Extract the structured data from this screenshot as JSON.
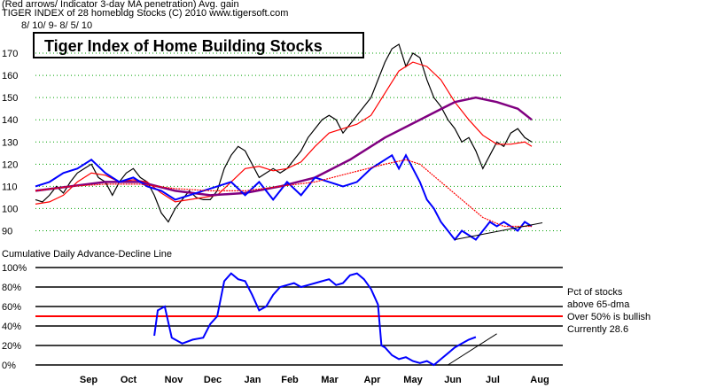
{
  "header": {
    "line0": "(Red arrows/ Indicator 3-day MA penetration) Avg. gain",
    "line1": "TIGER INDEX of  28 homebldg Stocks  (C) 2010  www.tigersoft.com",
    "line2": "8/ 10/ 9-  8/ 5/ 10"
  },
  "chart_data": [
    {
      "type": "line",
      "title": "Tiger Index of Home Building Stocks",
      "x_labels": [
        "Sep",
        "Oct",
        "Nov",
        "Dec",
        "Jan",
        "Feb",
        "Mar",
        "Apr",
        "May",
        "Jun",
        "Jul",
        "Aug"
      ],
      "y_ticks": [
        90,
        100,
        110,
        120,
        130,
        140,
        150,
        160,
        170
      ],
      "ylim": [
        87,
        178
      ],
      "series": [
        {
          "key": "price",
          "color": "#000000",
          "values": [
            [
              0,
              104
            ],
            [
              2,
              103
            ],
            [
              4,
              106
            ],
            [
              6,
              110
            ],
            [
              8,
              107
            ],
            [
              10,
              112
            ],
            [
              12,
              116
            ],
            [
              14,
              118
            ],
            [
              16,
              120
            ],
            [
              18,
              114
            ],
            [
              20,
              112
            ],
            [
              22,
              106
            ],
            [
              24,
              112
            ],
            [
              26,
              116
            ],
            [
              28,
              118
            ],
            [
              30,
              114
            ],
            [
              32,
              112
            ],
            [
              34,
              106
            ],
            [
              36,
              98
            ],
            [
              38,
              94
            ],
            [
              40,
              100
            ],
            [
              42,
              104
            ],
            [
              44,
              108
            ],
            [
              46,
              105
            ],
            [
              48,
              104
            ],
            [
              50,
              104
            ],
            [
              52,
              108
            ],
            [
              54,
              118
            ],
            [
              56,
              124
            ],
            [
              58,
              128
            ],
            [
              60,
              126
            ],
            [
              62,
              120
            ],
            [
              64,
              114
            ],
            [
              66,
              116
            ],
            [
              68,
              118
            ],
            [
              70,
              116
            ],
            [
              72,
              118
            ],
            [
              74,
              122
            ],
            [
              76,
              126
            ],
            [
              78,
              132
            ],
            [
              80,
              136
            ],
            [
              82,
              140
            ],
            [
              84,
              142
            ],
            [
              86,
              140
            ],
            [
              88,
              134
            ],
            [
              90,
              138
            ],
            [
              92,
              142
            ],
            [
              94,
              146
            ],
            [
              96,
              150
            ],
            [
              98,
              158
            ],
            [
              100,
              166
            ],
            [
              102,
              172
            ],
            [
              104,
              174
            ],
            [
              106,
              164
            ],
            [
              108,
              170
            ],
            [
              110,
              168
            ],
            [
              112,
              158
            ],
            [
              114,
              150
            ],
            [
              116,
              146
            ],
            [
              118,
              140
            ],
            [
              120,
              136
            ],
            [
              122,
              130
            ],
            [
              124,
              132
            ],
            [
              126,
              126
            ],
            [
              128,
              118
            ],
            [
              130,
              124
            ],
            [
              132,
              130
            ],
            [
              134,
              128
            ],
            [
              136,
              134
            ],
            [
              138,
              136
            ],
            [
              140,
              132
            ],
            [
              142,
              130
            ]
          ]
        },
        {
          "key": "ma_short",
          "color": "#ff0000",
          "values": [
            [
              0,
              102
            ],
            [
              4,
              103
            ],
            [
              8,
              106
            ],
            [
              12,
              112
            ],
            [
              16,
              116
            ],
            [
              20,
              115
            ],
            [
              24,
              112
            ],
            [
              28,
              113
            ],
            [
              32,
              112
            ],
            [
              36,
              107
            ],
            [
              40,
              103
            ],
            [
              44,
              104
            ],
            [
              48,
              105
            ],
            [
              52,
              106
            ],
            [
              56,
              112
            ],
            [
              60,
              118
            ],
            [
              64,
              119
            ],
            [
              68,
              117
            ],
            [
              72,
              118
            ],
            [
              76,
              121
            ],
            [
              80,
              128
            ],
            [
              84,
              134
            ],
            [
              88,
              136
            ],
            [
              92,
              138
            ],
            [
              96,
              142
            ],
            [
              100,
              152
            ],
            [
              104,
              162
            ],
            [
              108,
              166
            ],
            [
              112,
              164
            ],
            [
              116,
              158
            ],
            [
              120,
              148
            ],
            [
              124,
              140
            ],
            [
              128,
              133
            ],
            [
              132,
              129
            ],
            [
              136,
              129
            ],
            [
              140,
              130
            ],
            [
              142,
              128
            ]
          ]
        },
        {
          "key": "ma_long",
          "color": "#800080",
          "values": [
            [
              0,
              108
            ],
            [
              10,
              110
            ],
            [
              20,
              112
            ],
            [
              30,
              112
            ],
            [
              40,
              108
            ],
            [
              50,
              106
            ],
            [
              60,
              107
            ],
            [
              70,
              110
            ],
            [
              80,
              114
            ],
            [
              90,
              122
            ],
            [
              100,
              132
            ],
            [
              110,
              140
            ],
            [
              120,
              148
            ],
            [
              126,
              150
            ],
            [
              132,
              148
            ],
            [
              138,
              145
            ],
            [
              142,
              140
            ]
          ]
        },
        {
          "key": "rs_blue",
          "color": "#0000ff",
          "values": [
            [
              0,
              110
            ],
            [
              4,
              112
            ],
            [
              8,
              116
            ],
            [
              12,
              118
            ],
            [
              16,
              122
            ],
            [
              20,
              116
            ],
            [
              24,
              112
            ],
            [
              28,
              114
            ],
            [
              32,
              110
            ],
            [
              36,
              108
            ],
            [
              40,
              104
            ],
            [
              44,
              106
            ],
            [
              48,
              108
            ],
            [
              52,
              110
            ],
            [
              56,
              112
            ],
            [
              60,
              106
            ],
            [
              64,
              112
            ],
            [
              66,
              108
            ],
            [
              68,
              104
            ],
            [
              70,
              108
            ],
            [
              72,
              112
            ],
            [
              76,
              106
            ],
            [
              80,
              114
            ],
            [
              84,
              112
            ],
            [
              88,
              110
            ],
            [
              92,
              112
            ],
            [
              96,
              118
            ],
            [
              100,
              122
            ],
            [
              102,
              124
            ],
            [
              104,
              118
            ],
            [
              106,
              124
            ],
            [
              108,
              118
            ],
            [
              110,
              112
            ],
            [
              112,
              104
            ],
            [
              114,
              100
            ],
            [
              116,
              94
            ],
            [
              118,
              90
            ],
            [
              120,
              86
            ],
            [
              122,
              90
            ],
            [
              124,
              88
            ],
            [
              126,
              86
            ],
            [
              128,
              90
            ],
            [
              130,
              94
            ],
            [
              132,
              92
            ],
            [
              134,
              94
            ],
            [
              136,
              92
            ],
            [
              138,
              90
            ],
            [
              140,
              94
            ],
            [
              142,
              92
            ]
          ]
        },
        {
          "key": "rs_ma",
          "color": "#ff0000",
          "style": "dotted",
          "values": [
            [
              0,
              108
            ],
            [
              10,
              110
            ],
            [
              20,
              111
            ],
            [
              30,
              111
            ],
            [
              40,
              109
            ],
            [
              50,
              108
            ],
            [
              60,
              108
            ],
            [
              70,
              110
            ],
            [
              80,
              112
            ],
            [
              90,
              116
            ],
            [
              100,
              120
            ],
            [
              106,
              122
            ],
            [
              110,
              120
            ],
            [
              116,
              112
            ],
            [
              122,
              104
            ],
            [
              128,
              96
            ],
            [
              134,
              92
            ],
            [
              142,
              92
            ]
          ]
        }
      ]
    },
    {
      "type": "line",
      "title": "Cumulative Daily Advance-Decline Line",
      "y_ticks": [
        "100%",
        "80%",
        "60%",
        "40%",
        "20%",
        "0%"
      ],
      "ylim": [
        0,
        100
      ],
      "threshold": 50,
      "series": [
        {
          "key": "pct_above_65dma",
          "color": "#0000ff",
          "values": [
            [
              34,
              30
            ],
            [
              35,
              56
            ],
            [
              37,
              60
            ],
            [
              39,
              28
            ],
            [
              42,
              22
            ],
            [
              45,
              26
            ],
            [
              48,
              28
            ],
            [
              50,
              42
            ],
            [
              52,
              50
            ],
            [
              54,
              86
            ],
            [
              56,
              94
            ],
            [
              58,
              88
            ],
            [
              60,
              86
            ],
            [
              62,
              72
            ],
            [
              64,
              56
            ],
            [
              66,
              60
            ],
            [
              68,
              72
            ],
            [
              70,
              80
            ],
            [
              72,
              82
            ],
            [
              74,
              84
            ],
            [
              76,
              80
            ],
            [
              78,
              82
            ],
            [
              80,
              84
            ],
            [
              82,
              86
            ],
            [
              84,
              88
            ],
            [
              86,
              82
            ],
            [
              88,
              84
            ],
            [
              90,
              92
            ],
            [
              92,
              94
            ],
            [
              94,
              88
            ],
            [
              96,
              78
            ],
            [
              98,
              62
            ],
            [
              99,
              20
            ],
            [
              100,
              18
            ],
            [
              102,
              10
            ],
            [
              104,
              6
            ],
            [
              106,
              8
            ],
            [
              108,
              4
            ],
            [
              110,
              2
            ],
            [
              112,
              4
            ],
            [
              114,
              0
            ],
            [
              116,
              6
            ],
            [
              118,
              12
            ],
            [
              120,
              18
            ],
            [
              122,
              22
            ],
            [
              124,
              26
            ],
            [
              126,
              28.6
            ]
          ]
        }
      ],
      "annotations": {
        "line1": "Pct of stocks",
        "line2": "above 65-dma",
        "line3": "Over 50% is bullish",
        "line4": "Currently  28.6"
      }
    }
  ]
}
